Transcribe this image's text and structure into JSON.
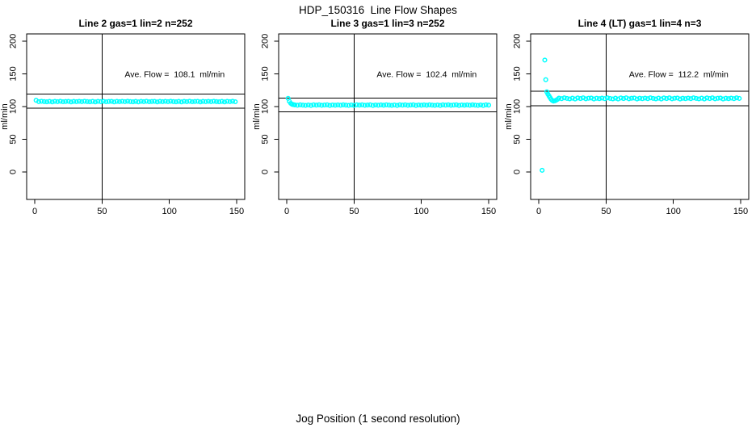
{
  "page": {
    "title": "HDP_150316  Line Flow Shapes",
    "xlabel": "Jog Position (1 second resolution)",
    "background": "#ffffff"
  },
  "chart_data": [
    {
      "type": "scatter",
      "title": "Line 2 gas=1 lin=2 n=252",
      "ylabel": "ml/min",
      "annotation": "Ave. Flow =  108.1  ml/min",
      "ave_flow": 108.1,
      "n": 252,
      "point_color": "#00FFFF",
      "axis_color": "#000000",
      "x_ticks": [
        0,
        50,
        100,
        150
      ],
      "y_ticks": [
        0,
        50,
        100,
        150,
        200
      ],
      "xlim": [
        -6,
        156
      ],
      "ylim": [
        -42,
        211
      ],
      "vline_x": 50,
      "hlines": [
        118.9,
        97.3
      ],
      "annotation_pos": {
        "x": 104,
        "y": 150
      },
      "series": [
        {
          "name": "flow",
          "x0": 1,
          "dx": 2,
          "y": [
            109.6,
            107.4,
            108.1,
            107.6,
            107.2,
            107.8,
            107.1,
            108.0,
            107.5,
            108.1,
            107.3,
            107.7,
            108.0,
            107.1,
            107.8,
            107.4,
            107.9,
            107.4,
            108.1,
            107.6,
            107.2,
            107.8,
            107.1,
            108.0,
            107.5,
            108.1,
            107.3,
            107.7,
            108.0,
            107.1,
            107.8,
            107.4,
            107.9,
            107.4,
            108.1,
            107.6,
            107.2,
            107.8,
            107.1,
            108.0,
            107.5,
            108.1,
            107.3,
            107.7,
            108.0,
            107.1,
            107.8,
            107.4,
            107.9,
            107.4,
            108.1,
            107.6,
            107.2,
            107.8,
            107.1,
            108.0,
            107.5,
            108.1,
            107.3,
            107.7,
            108.0,
            107.1,
            107.8,
            107.4,
            107.9,
            107.4,
            108.1,
            107.6,
            107.2,
            107.8,
            107.1,
            108.0,
            107.5,
            108.1,
            107.3
          ]
        }
      ],
      "extra_points": []
    },
    {
      "type": "scatter",
      "title": "Line 3 gas=1 lin=3 n=252",
      "ylabel": "ml/min",
      "annotation": "Ave. Flow =  102.4  ml/min",
      "ave_flow": 102.4,
      "n": 252,
      "point_color": "#00FFFF",
      "axis_color": "#000000",
      "x_ticks": [
        0,
        50,
        100,
        150
      ],
      "y_ticks": [
        0,
        50,
        100,
        150,
        200
      ],
      "xlim": [
        -6,
        156
      ],
      "ylim": [
        -42,
        211
      ],
      "vline_x": 50,
      "hlines": [
        112.6,
        92.2
      ],
      "annotation_pos": {
        "x": 104,
        "y": 150
      },
      "series": [
        {
          "name": "flow",
          "x0": 6,
          "dx": 2,
          "y": [
            102.5,
            102.0,
            102.7,
            102.2,
            101.8,
            102.4,
            101.7,
            102.6,
            102.1,
            102.7,
            101.9,
            102.3,
            102.6,
            101.7,
            102.4,
            102.0,
            102.5,
            102.0,
            102.7,
            102.2,
            101.8,
            102.4,
            101.7,
            102.6,
            102.1,
            102.7,
            101.9,
            102.3,
            102.6,
            101.7,
            102.4,
            102.0,
            102.5,
            102.0,
            102.7,
            102.2,
            101.8,
            102.4,
            101.7,
            102.6,
            102.1,
            102.7,
            101.9,
            102.3,
            102.6,
            101.7,
            102.4,
            102.0,
            102.5,
            102.0,
            102.7,
            102.2,
            101.8,
            102.4,
            101.7,
            102.6,
            102.1,
            102.7,
            101.9,
            102.3,
            102.6,
            101.7,
            102.4,
            102.0,
            102.5,
            102.0,
            102.7,
            102.2,
            101.8,
            102.4,
            101.7,
            102.6,
            102.1
          ]
        }
      ],
      "extra_points": [
        [
          1,
          112.5
        ],
        [
          2,
          107.8
        ],
        [
          3,
          104.9
        ],
        [
          4,
          103.4
        ],
        [
          5,
          102.9
        ]
      ]
    },
    {
      "type": "scatter",
      "title": "Line 4 (LT) gas=1 lin=4 n=3",
      "ylabel": "ml/min",
      "annotation": "Ave. Flow =  112.2  ml/min",
      "ave_flow": 112.2,
      "n": 3,
      "point_color": "#00FFFF",
      "axis_color": "#000000",
      "x_ticks": [
        0,
        50,
        100,
        150
      ],
      "y_ticks": [
        0,
        50,
        100,
        150,
        200
      ],
      "xlim": [
        -6,
        156
      ],
      "ylim": [
        -42,
        211
      ],
      "vline_x": 50,
      "hlines": [
        123.4,
        101.0
      ],
      "annotation_pos": {
        "x": 104,
        "y": 150
      },
      "series": [
        {
          "name": "flow",
          "x0": 15,
          "dx": 2,
          "y": [
            112.9,
            112.0,
            113.2,
            112.4,
            111.6,
            112.8,
            111.5,
            113.1,
            112.1,
            113.2,
            111.8,
            112.6,
            113.0,
            111.5,
            112.7,
            112.0,
            112.9,
            112.0,
            113.2,
            112.4,
            111.6,
            112.8,
            111.5,
            113.1,
            112.1,
            113.2,
            111.8,
            112.6,
            113.0,
            111.5,
            112.7,
            112.0,
            112.9,
            112.0,
            113.2,
            112.4,
            111.6,
            112.8,
            111.5,
            113.1,
            112.1,
            113.2,
            111.8,
            112.6,
            113.0,
            111.5,
            112.7,
            112.0,
            112.9,
            112.0,
            113.2,
            112.4,
            111.6,
            112.8,
            111.5,
            113.1,
            112.1,
            113.2,
            111.8,
            112.6,
            113.0,
            111.5,
            112.7,
            112.0,
            112.9,
            112.0,
            113.2,
            112.4
          ]
        }
      ],
      "extra_points": [
        [
          2.5,
          2.5
        ],
        [
          4.5,
          171
        ],
        [
          5.2,
          141
        ],
        [
          6,
          122.5
        ],
        [
          6.8,
          119
        ],
        [
          7.6,
          116.2
        ],
        [
          8.4,
          113.6
        ],
        [
          9.2,
          111.2
        ],
        [
          10,
          109.4
        ],
        [
          11,
          108.3
        ],
        [
          12,
          108.8
        ],
        [
          13,
          109.8
        ],
        [
          14,
          111
        ]
      ]
    }
  ]
}
